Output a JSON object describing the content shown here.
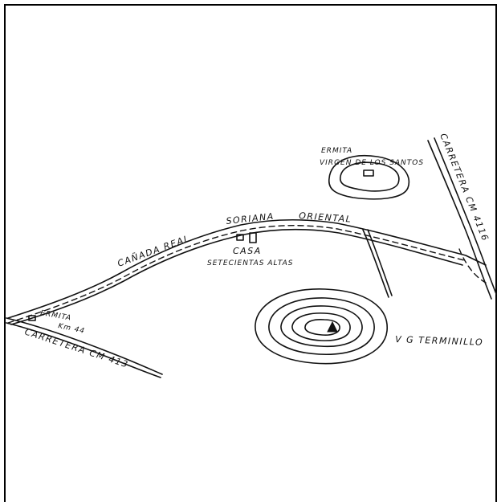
{
  "labels": {
    "canada_left": "CAÑADA REAL",
    "canada_mid": "SORIANA",
    "canada_right": "ORIENTAL",
    "casa_1": "CASA",
    "casa_2": "SETECIENTAS ALTAS",
    "ermita_top_1": "ERMITA",
    "ermita_top_2": "VIRGEN DE LOS SANTOS",
    "carretera_right": "CARRETERA CM 4116",
    "ermita_left": "ERMITA",
    "km": "Km 44",
    "carretera_left": "CARRETERA CM 413",
    "vg": "V G TERMINILLO"
  },
  "icons": {
    "summit": "triangle-vertex-icon",
    "building": "rectangle-building-icon"
  },
  "colors": {
    "ink": "#111111",
    "paper": "#ffffff"
  }
}
